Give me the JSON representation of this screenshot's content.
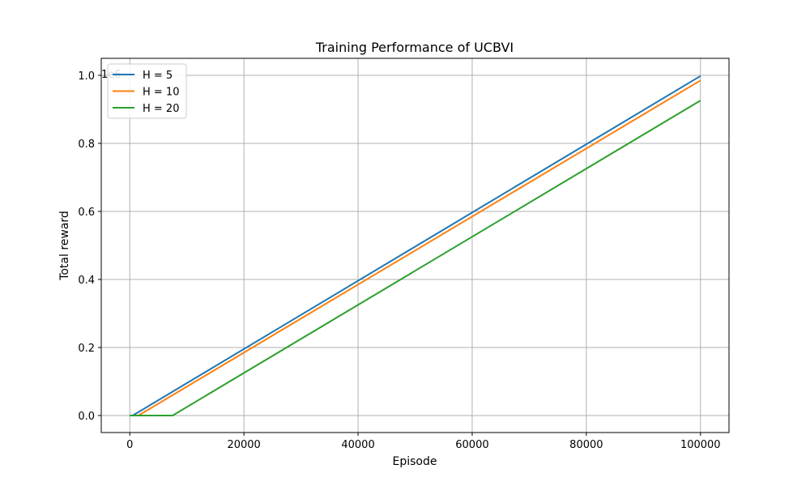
{
  "chart_data": {
    "type": "line",
    "title": "Training Performance of UCBVI",
    "xlabel": "Episode",
    "ylabel": "Total reward",
    "y_offset_label": "1e6",
    "xlim": [
      -5000,
      105000
    ],
    "ylim": [
      -0.05,
      1.05
    ],
    "x_ticks": [
      0,
      20000,
      40000,
      60000,
      80000,
      100000
    ],
    "x_tick_labels": [
      "0",
      "20000",
      "40000",
      "60000",
      "80000",
      "100000"
    ],
    "y_ticks": [
      0.0,
      0.2,
      0.4,
      0.6,
      0.8,
      1.0
    ],
    "y_tick_labels": [
      "0.0",
      "0.2",
      "0.4",
      "0.6",
      "0.8",
      "1.0"
    ],
    "grid": true,
    "legend_position": "top-left",
    "series": [
      {
        "name": "H = 5",
        "color": "#1f77b4",
        "points": [
          [
            0,
            0
          ],
          [
            500,
            0
          ],
          [
            100000,
            0.998
          ]
        ]
      },
      {
        "name": "H = 10",
        "color": "#ff7f0e",
        "points": [
          [
            0,
            0
          ],
          [
            1500,
            0
          ],
          [
            100000,
            0.985
          ]
        ]
      },
      {
        "name": "H = 20",
        "color": "#2ca02c",
        "points": [
          [
            0,
            0
          ],
          [
            7500,
            0
          ],
          [
            100000,
            0.926
          ]
        ]
      }
    ]
  }
}
